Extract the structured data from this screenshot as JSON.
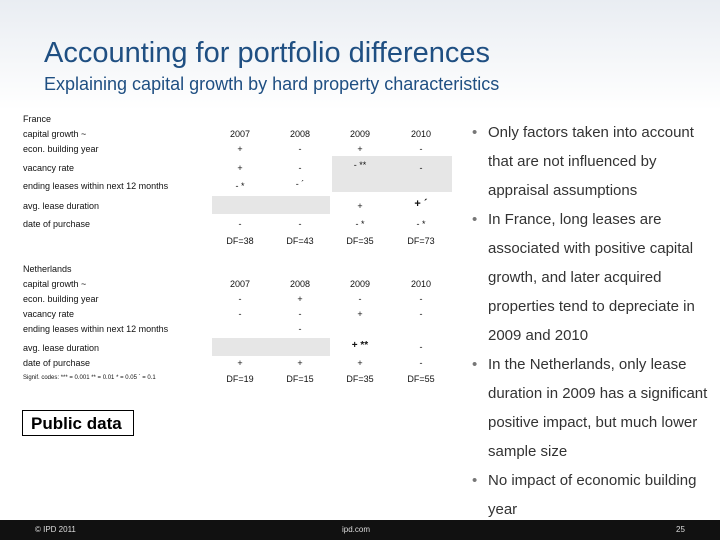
{
  "header": {
    "title": "Accounting for portfolio differences",
    "subtitle": "Explaining capital growth by hard property characteristics"
  },
  "france": {
    "labels": [
      "France",
      "capital growth ~",
      "econ. building year",
      "vacancy rate",
      "ending leases within next 12 months",
      "avg. lease duration",
      "date of purchase"
    ],
    "years": [
      "2007",
      "2008",
      "2009",
      "2010"
    ],
    "econ_building_year": [
      "+",
      "-",
      "+",
      "-"
    ],
    "vacancy_rate": [
      "+",
      "-",
      "- **",
      "-"
    ],
    "ending_leases": [
      "- *",
      "- ´",
      "",
      ""
    ],
    "avg_lease_duration": [
      "",
      "",
      "+",
      "+ ´"
    ],
    "date_of_purchase": [
      "-",
      "-",
      "- *",
      "- *"
    ],
    "df": [
      "DF=38",
      "DF=43",
      "DF=35",
      "DF=73"
    ]
  },
  "netherlands": {
    "labels": [
      "Netherlands",
      "capital growth ~",
      "econ. building year",
      "vacancy rate",
      "ending leases within next 12 months",
      "avg. lease duration",
      "date of purchase"
    ],
    "years": [
      "2007",
      "2008",
      "2009",
      "2010"
    ],
    "econ_building_year": [
      "-",
      "+",
      "-",
      "-"
    ],
    "vacancy_rate": [
      "-",
      "-",
      "+",
      "-"
    ],
    "ending_leases": [
      "",
      "-",
      "",
      ""
    ],
    "avg_lease_duration": [
      "",
      "",
      "+ **",
      "-"
    ],
    "date_of_purchase": [
      "+",
      "+",
      "+",
      "-"
    ],
    "df": [
      "DF=19",
      "DF=15",
      "DF=35",
      "DF=55"
    ]
  },
  "signif_codes": "Signif. codes: *** = 0.001  ** = 0.01  * = 0.05  ´ = 0.1",
  "public_data": "Public data",
  "bullets": [
    "Only factors taken into account that are not influenced by appraisal assumptions",
    "In France, long leases are associated with positive capital growth, and later acquired properties tend to depreciate in 2009 and 2010",
    "In the Netherlands, only lease duration in 2009 has a significant positive impact, but much lower sample size",
    "No impact of economic building year"
  ],
  "bullet_glyph": "•",
  "footer": {
    "copyright": "© IPD 2011",
    "site": "ipd.com",
    "page": "25"
  },
  "colors": {
    "title": "#1f4f82",
    "cell_bg": "#e6e6e6",
    "footer_bg": "#111111"
  }
}
